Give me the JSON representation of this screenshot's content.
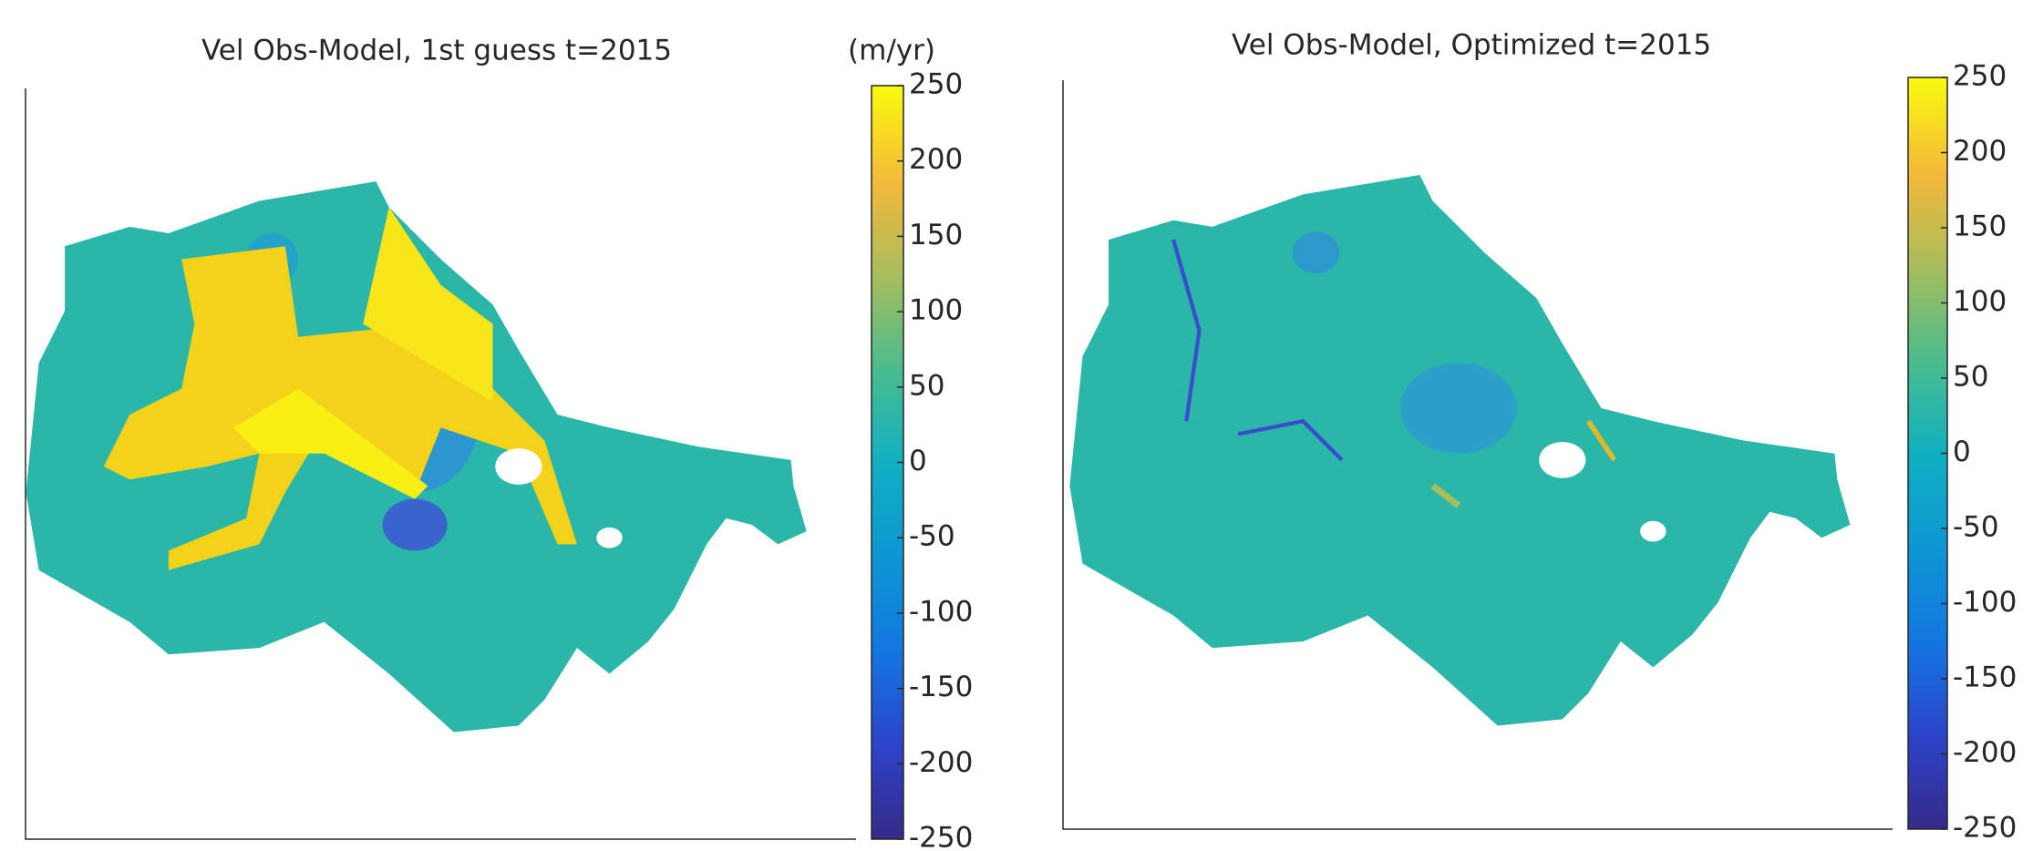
{
  "chart_data": [
    {
      "type": "heatmap",
      "title": "Vel Obs-Model, 1st guess t=2015",
      "colorbar": {
        "label": "(m/yr)",
        "lim": [
          -250,
          250
        ],
        "ticks": [
          250,
          200,
          150,
          100,
          50,
          0,
          -50,
          -100,
          -150,
          -200,
          -250
        ]
      }
    },
    {
      "type": "heatmap",
      "title": "Vel Obs-Model, Optimized t=2015",
      "colorbar": {
        "lim": [
          -250,
          250
        ],
        "ticks": [
          250,
          200,
          150,
          100,
          50,
          0,
          -50,
          -100,
          -150,
          -200,
          -250
        ]
      }
    }
  ]
}
